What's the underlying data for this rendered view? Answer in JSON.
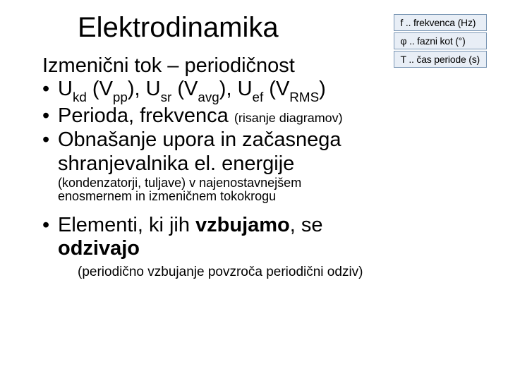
{
  "title": "Elektrodinamika",
  "legend": {
    "row1": "f .. frekvenca (Hz)",
    "row2": "φ .. fazni kot (°)",
    "row3": "T .. čas periode (s)"
  },
  "subtitle": "Izmenični tok – periodičnost",
  "bullet1": {
    "u": "U",
    "kd": "kd",
    "vpp_open": " (V",
    "pp": "pp",
    "close": "), ",
    "sr": "sr",
    "vavg_open": " (V",
    "avg": "avg",
    "close2": "), ",
    "ef": "ef",
    "vrms_open": " (V",
    "rms": "RMS",
    "close3": ")"
  },
  "bullet2": {
    "main": "Perioda, frekvenca ",
    "small": "(risanje diagramov)"
  },
  "bullet3": {
    "line1": "Obnašanje upora in začasnega",
    "line2": "shranjevalnika el. energije"
  },
  "smallline": {
    "part_small": "(kondenzatorji, tuljave)",
    "part_rest1": " v najenostavnejšem",
    "part_rest2": "enosmernem in izmeničnem tokokrogu"
  },
  "bullet4": {
    "pre": "Elementi, ki jih ",
    "bold1": "vzbujamo",
    "mid": ", se",
    "bold2": "odzivajo"
  },
  "footer": "(periodično vzbujanje povzroča periodični odziv)",
  "colors": {
    "legend_bg": "#e8eef6",
    "legend_border": "#7a96b4",
    "text": "#000000",
    "page_bg": "#ffffff"
  },
  "typography": {
    "title_fontsize": 40,
    "body_fontsize": 29,
    "legend_fontsize": 14,
    "small_fontsize": 18,
    "font_family": "Verdana"
  }
}
